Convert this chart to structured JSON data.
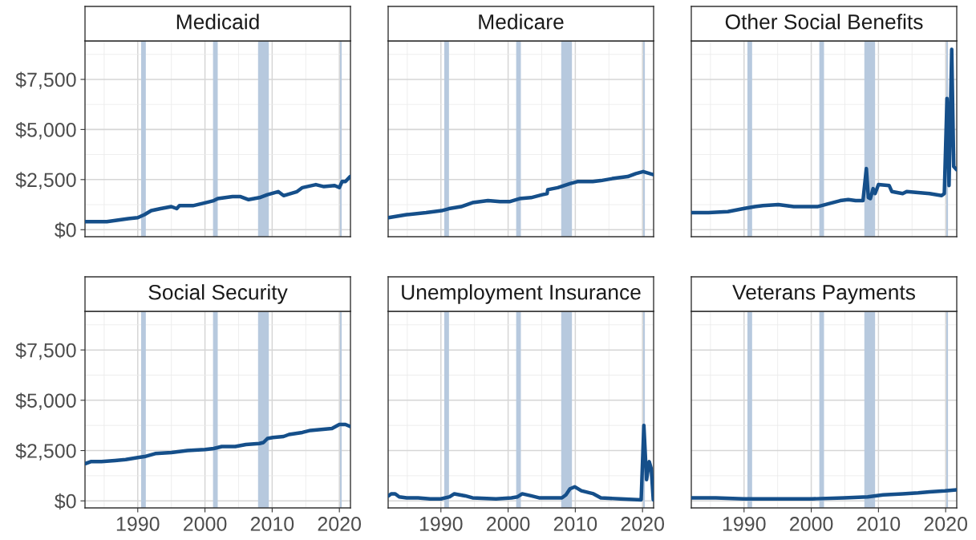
{
  "chart_data": [
    {
      "type": "line",
      "title": "Medicaid",
      "xlim": [
        1982.15,
        2021.65
      ],
      "xticks": [
        1990,
        2000,
        2010,
        2020
      ],
      "ylim": [
        -350,
        9420
      ],
      "yticks": [
        {
          "value": 0,
          "label": "$0"
        },
        {
          "value": 2500,
          "label": "$2,500"
        },
        {
          "value": 5000,
          "label": "$5,000"
        },
        {
          "value": 7500,
          "label": "$7,500"
        }
      ],
      "grid": true,
      "tick_labels": "y",
      "bands": [
        {
          "axis": "x",
          "from": 1990.5,
          "to": 1991.2,
          "color": "#b7c9de"
        },
        {
          "axis": "x",
          "from": 2001.2,
          "to": 2001.9,
          "color": "#b7c9de"
        },
        {
          "axis": "x",
          "from": 2007.9,
          "to": 2009.5,
          "color": "#b7c9de"
        },
        {
          "axis": "x",
          "from": 2020.1,
          "to": 2020.35,
          "color": "#b7c9de"
        }
      ],
      "series": [
        {
          "color": "#154f8a",
          "x": [
            1982.2,
            1985.4,
            1988.6,
            1990,
            1991,
            1992,
            1993.4,
            1995,
            1995.8,
            1996.2,
            1998.2,
            2000.1,
            2001.3,
            2001.9,
            2004.1,
            2005.3,
            2006.5,
            2008.1,
            2009.3,
            2010.9,
            2011.7,
            2013.7,
            2014.5,
            2016.5,
            2017.7,
            2019.3,
            2020,
            2020.4,
            2020.9,
            2021.6
          ],
          "values": [
            400,
            400,
            550,
            600,
            750,
            950,
            1050,
            1150,
            1050,
            1200,
            1200,
            1350,
            1450,
            1550,
            1650,
            1650,
            1500,
            1600,
            1750,
            1900,
            1700,
            1900,
            2100,
            2250,
            2150,
            2200,
            2100,
            2400,
            2400,
            2650
          ]
        }
      ]
    },
    {
      "type": "line",
      "title": "Medicare",
      "xlim": [
        1982.15,
        2021.65
      ],
      "xticks": [
        1990,
        2000,
        2010,
        2020
      ],
      "ylim": [
        -350,
        9420
      ],
      "yticks": [
        0,
        2500,
        5000,
        7500
      ],
      "grid": true,
      "tick_labels": false,
      "bands": [
        {
          "axis": "x",
          "from": 1990.5,
          "to": 1991.2,
          "color": "#b7c9de"
        },
        {
          "axis": "x",
          "from": 2001.2,
          "to": 2001.9,
          "color": "#b7c9de"
        },
        {
          "axis": "x",
          "from": 2007.9,
          "to": 2009.5,
          "color": "#b7c9de"
        },
        {
          "axis": "x",
          "from": 2020.1,
          "to": 2020.35,
          "color": "#b7c9de"
        }
      ],
      "series": [
        {
          "color": "#154f8a",
          "x": [
            1982.2,
            1984.9,
            1987.8,
            1990.1,
            1991.2,
            1993,
            1994.7,
            1997,
            1998.8,
            2000.2,
            2001.7,
            2003.4,
            2005.1,
            2005.8,
            2005.9,
            2007.4,
            2009.2,
            2010.3,
            2012.6,
            2013.8,
            2015.5,
            2017.8,
            2019,
            2020.1,
            2021.6
          ],
          "values": [
            600,
            750,
            850,
            950,
            1050,
            1150,
            1350,
            1450,
            1400,
            1400,
            1550,
            1600,
            1750,
            1800,
            2000,
            2100,
            2300,
            2400,
            2400,
            2450,
            2550,
            2650,
            2800,
            2900,
            2750
          ]
        }
      ]
    },
    {
      "type": "line",
      "title": "Other Social Benefits",
      "xlim": [
        1982.15,
        2021.65
      ],
      "xticks": [
        1990,
        2000,
        2010,
        2020
      ],
      "ylim": [
        -350,
        9420
      ],
      "yticks": [
        0,
        2500,
        5000,
        7500
      ],
      "grid": true,
      "tick_labels": false,
      "bands": [
        {
          "axis": "x",
          "from": 1990.5,
          "to": 1991.2,
          "color": "#b7c9de"
        },
        {
          "axis": "x",
          "from": 2001.2,
          "to": 2001.9,
          "color": "#b7c9de"
        },
        {
          "axis": "x",
          "from": 2007.9,
          "to": 2009.5,
          "color": "#b7c9de"
        },
        {
          "axis": "x",
          "from": 2020.1,
          "to": 2020.35,
          "color": "#b7c9de"
        }
      ],
      "series": [
        {
          "color": "#154f8a",
          "x": [
            1982.2,
            1984.7,
            1987.6,
            1989.9,
            1991.6,
            1992.8,
            1995.1,
            1997.4,
            1999.7,
            2000.9,
            2002.6,
            2004.3,
            2005.5,
            2006.6,
            2007.7,
            2008.2,
            2008.5,
            2008.8,
            2009.2,
            2009.5,
            2010,
            2011.6,
            2012,
            2013.6,
            2014.2,
            2015.9,
            2017.6,
            2019.4,
            2019.8,
            2020.2,
            2020.5,
            2020.9,
            2021.2,
            2021.6
          ],
          "values": [
            850,
            850,
            900,
            1050,
            1150,
            1200,
            1250,
            1150,
            1150,
            1150,
            1300,
            1450,
            1500,
            1450,
            1450,
            3050,
            1600,
            1550,
            2050,
            1800,
            2250,
            2200,
            1900,
            1800,
            1900,
            1850,
            1800,
            1700,
            1800,
            6550,
            2200,
            9000,
            3150,
            3000
          ]
        }
      ]
    },
    {
      "type": "line",
      "title": "Social Security",
      "xlim": [
        1982.15,
        2021.65
      ],
      "xticks": [
        1990,
        2000,
        2010,
        2020
      ],
      "ylim": [
        -350,
        9420
      ],
      "yticks": [
        {
          "value": 0,
          "label": "$0"
        },
        {
          "value": 2500,
          "label": "$2,500"
        },
        {
          "value": 5000,
          "label": "$5,000"
        },
        {
          "value": 7500,
          "label": "$7,500"
        }
      ],
      "grid": true,
      "bands": [
        {
          "axis": "x",
          "from": 1990.5,
          "to": 1991.2,
          "color": "#b7c9de"
        },
        {
          "axis": "x",
          "from": 2001.2,
          "to": 2001.9,
          "color": "#b7c9de"
        },
        {
          "axis": "x",
          "from": 2007.9,
          "to": 2009.5,
          "color": "#b7c9de"
        },
        {
          "axis": "x",
          "from": 2020.1,
          "to": 2020.35,
          "color": "#b7c9de"
        }
      ],
      "series": [
        {
          "color": "#154f8a",
          "x": [
            1982.2,
            1983,
            1984.6,
            1986.6,
            1988.2,
            1990,
            1991,
            1992.6,
            1995,
            1997.4,
            2000,
            2001.3,
            2002.5,
            2004.5,
            2006.1,
            2008.1,
            2008.7,
            2009.3,
            2010.1,
            2011.7,
            2012.5,
            2014.5,
            2015.7,
            2017.3,
            2018.9,
            2020,
            2020.9,
            2021.6
          ],
          "values": [
            1850,
            1950,
            1950,
            2000,
            2050,
            2150,
            2200,
            2350,
            2400,
            2500,
            2550,
            2600,
            2700,
            2700,
            2800,
            2850,
            2900,
            3100,
            3150,
            3200,
            3300,
            3400,
            3500,
            3550,
            3600,
            3800,
            3800,
            3700
          ]
        }
      ]
    },
    {
      "type": "line",
      "title": "Unemployment Insurance",
      "xlim": [
        1982.15,
        2021.65
      ],
      "xticks": [
        1990,
        2000,
        2010,
        2020
      ],
      "ylim": [
        -350,
        9420
      ],
      "yticks": [
        0,
        2500,
        5000,
        7500
      ],
      "grid": true,
      "tick_labels": "x",
      "bands": [
        {
          "axis": "x",
          "from": 1990.5,
          "to": 1991.2,
          "color": "#b7c9de"
        },
        {
          "axis": "x",
          "from": 2001.2,
          "to": 2001.9,
          "color": "#b7c9de"
        },
        {
          "axis": "x",
          "from": 2007.9,
          "to": 2009.5,
          "color": "#b7c9de"
        },
        {
          "axis": "x",
          "from": 2020.1,
          "to": 2020.35,
          "color": "#b7c9de"
        }
      ],
      "series": [
        {
          "color": "#154f8a",
          "x": [
            1982.2,
            1982.6,
            1983.2,
            1983.8,
            1984.9,
            1986.6,
            1988.4,
            1990,
            1991.3,
            1992,
            1993.6,
            1994.7,
            1998.2,
            2000.5,
            2001.4,
            2002.1,
            2003.4,
            2004.6,
            2008,
            2008.6,
            2009.2,
            2009.9,
            2010.9,
            2012.7,
            2013.8,
            2016.7,
            2019.8,
            2020.2,
            2020.6,
            2021,
            2021.3,
            2021.6
          ],
          "values": [
            250,
            350,
            350,
            200,
            150,
            150,
            100,
            100,
            200,
            350,
            250,
            150,
            100,
            150,
            200,
            350,
            250,
            150,
            150,
            300,
            600,
            700,
            500,
            350,
            150,
            100,
            50,
            3750,
            1050,
            1950,
            1600,
            50
          ]
        }
      ]
    },
    {
      "type": "line",
      "title": "Veterans Payments",
      "xlim": [
        1982.15,
        2021.65
      ],
      "xticks": [
        1990,
        2000,
        2010,
        2020
      ],
      "ylim": [
        -350,
        9420
      ],
      "yticks": [
        0,
        2500,
        5000,
        7500
      ],
      "grid": true,
      "tick_labels": "x",
      "bands": [
        {
          "axis": "x",
          "from": 1990.5,
          "to": 1991.2,
          "color": "#b7c9de"
        },
        {
          "axis": "x",
          "from": 2001.2,
          "to": 2001.9,
          "color": "#b7c9de"
        },
        {
          "axis": "x",
          "from": 2007.9,
          "to": 2009.5,
          "color": "#b7c9de"
        },
        {
          "axis": "x",
          "from": 2020.1,
          "to": 2020.35,
          "color": "#b7c9de"
        }
      ],
      "series": [
        {
          "color": "#154f8a",
          "x": [
            1982.2,
            1985.8,
            1990,
            1994.5,
            2000.1,
            2004.9,
            2008.4,
            2010.7,
            2013.6,
            2015.9,
            2017.6,
            2019.9,
            2021.6
          ],
          "values": [
            150,
            150,
            100,
            100,
            100,
            150,
            200,
            300,
            350,
            400,
            450,
            500,
            550
          ]
        }
      ]
    }
  ]
}
